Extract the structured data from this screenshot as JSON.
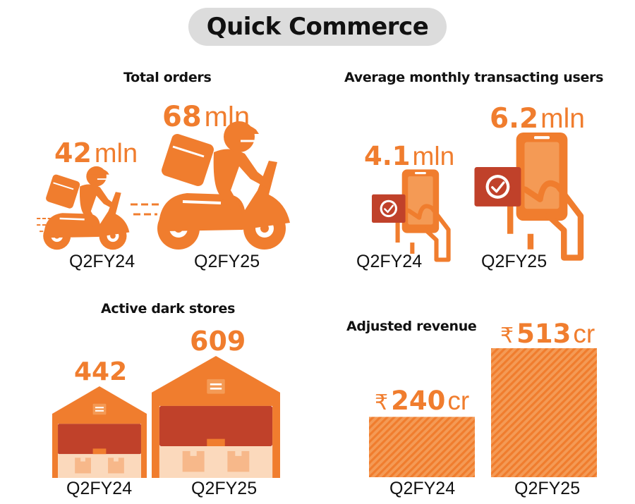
{
  "page_title": "Quick Commerce",
  "palette": {
    "orange": "#f07d2e",
    "dark_red": "#c0412a",
    "cream": "#fbd9bc",
    "pill": "#dcdcdc"
  },
  "chart_data": [
    {
      "type": "bar",
      "title": "Total orders",
      "icon": "delivery-scooter-icon",
      "categories": [
        "Q2FY24",
        "Q2FY25"
      ],
      "values": [
        42,
        68
      ],
      "labels": [
        {
          "num": "42",
          "unit": "mln"
        },
        {
          "num": "68",
          "unit": "mln"
        }
      ]
    },
    {
      "type": "bar",
      "title": "Average monthly transacting users",
      "icon": "smartphone-check-icon",
      "categories": [
        "Q2FY24",
        "Q2FY25"
      ],
      "values": [
        4.1,
        6.2
      ],
      "labels": [
        {
          "num": "4.1",
          "unit": "mln"
        },
        {
          "num": "6.2",
          "unit": "mln"
        }
      ]
    },
    {
      "type": "bar",
      "title": "Active dark stores",
      "icon": "warehouse-icon",
      "categories": [
        "Q2FY24",
        "Q2FY25"
      ],
      "values": [
        442,
        609
      ],
      "labels": [
        {
          "num": "442"
        },
        {
          "num": "609"
        }
      ]
    },
    {
      "type": "bar",
      "title": "Adjusted revenue",
      "categories": [
        "Q2FY24",
        "Q2FY25"
      ],
      "values": [
        240,
        513
      ],
      "labels": [
        {
          "prefix": "₹",
          "num": "240",
          "unit": "cr"
        },
        {
          "prefix": "₹",
          "num": "513",
          "unit": "cr"
        }
      ]
    }
  ]
}
